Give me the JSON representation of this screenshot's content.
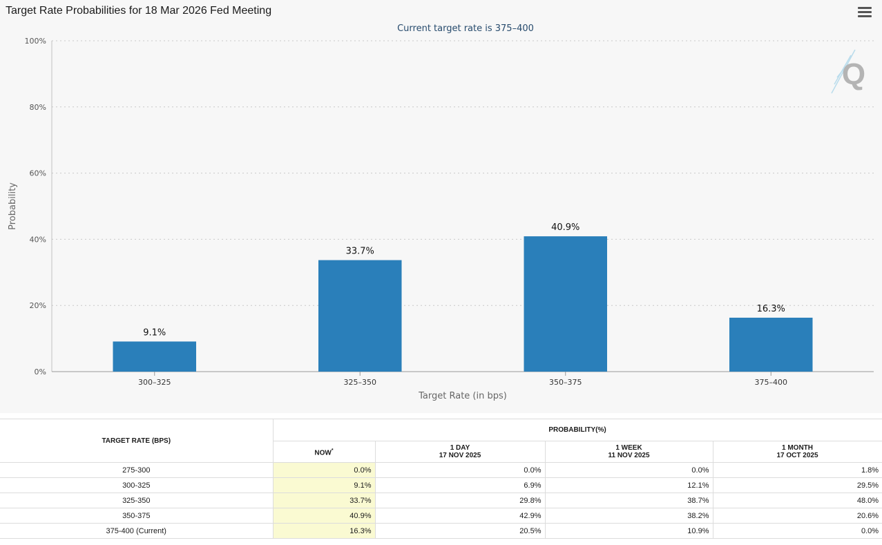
{
  "title": "Target Rate Probabilities for 18 Mar 2026 Fed Meeting",
  "menu_icon": "hamburger-menu-icon",
  "watermark_icon": "q-logo-icon",
  "watermark_letter": "Q",
  "colors": {
    "bar": "#2a7fba",
    "now_column": "#fafad2",
    "panel": "#f7f7f7"
  },
  "chart_data": {
    "type": "bar",
    "title": "Target Rate Probabilities for 18 Mar 2026 Fed Meeting",
    "subtitle": "Current target rate is 375–400",
    "categories": [
      "300–325",
      "325–350",
      "350–375",
      "375–400"
    ],
    "values": [
      9.1,
      33.7,
      40.9,
      16.3
    ],
    "data_labels": [
      "9.1%",
      "33.7%",
      "40.9%",
      "16.3%"
    ],
    "xlabel": "Target Rate (in bps)",
    "ylabel": "Probability",
    "ylim": [
      0,
      100
    ],
    "yticks": [
      0,
      20,
      40,
      60,
      80,
      100
    ],
    "ytick_labels": [
      "0%",
      "20%",
      "40%",
      "60%",
      "80%",
      "100%"
    ],
    "grid": true,
    "legend": "none"
  },
  "table": {
    "col_target": "TARGET RATE (BPS)",
    "col_prob": "PROBABILITY(%)",
    "col_now": "NOW",
    "now_mark": "*",
    "col_1day_label": "1 DAY",
    "col_1day_date": "17 NOV 2025",
    "col_1week_label": "1 WEEK",
    "col_1week_date": "11 NOV 2025",
    "col_1month_label": "1 MONTH",
    "col_1month_date": "17 OCT 2025",
    "rows": [
      {
        "rate": "275-300",
        "now": "0.0%",
        "day": "0.0%",
        "week": "0.0%",
        "month": "1.8%"
      },
      {
        "rate": "300-325",
        "now": "9.1%",
        "day": "6.9%",
        "week": "12.1%",
        "month": "29.5%"
      },
      {
        "rate": "325-350",
        "now": "33.7%",
        "day": "29.8%",
        "week": "38.7%",
        "month": "48.0%"
      },
      {
        "rate": "350-375",
        "now": "40.9%",
        "day": "42.9%",
        "week": "38.2%",
        "month": "20.6%"
      },
      {
        "rate": "375-400 (Current)",
        "now": "16.3%",
        "day": "20.5%",
        "week": "10.9%",
        "month": "0.0%"
      }
    ]
  }
}
